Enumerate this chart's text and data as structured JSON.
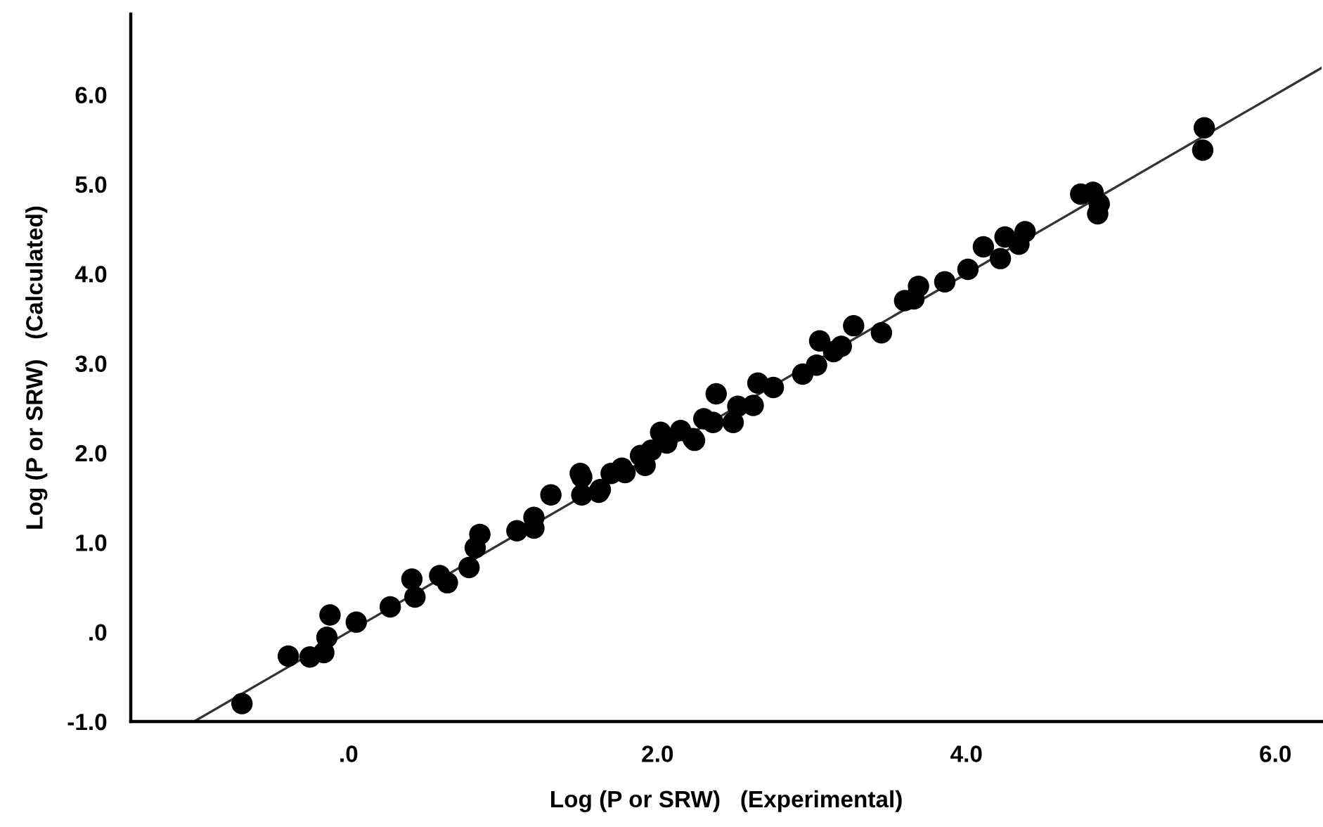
{
  "chart_data": {
    "type": "scatter",
    "xlabel": "Log (P or SRW)   (Experimental)",
    "ylabel": "Log (P or SRW)   (Calculated)",
    "xlim": [
      -1.41,
      6.3
    ],
    "ylim": [
      -1.0,
      6.9
    ],
    "xticks": [
      {
        "value": 0,
        "label": ".0"
      },
      {
        "value": 2,
        "label": "2.0"
      },
      {
        "value": 4,
        "label": "4.0"
      },
      {
        "value": 6,
        "label": "6.0"
      }
    ],
    "yticks": [
      {
        "value": -1,
        "label": "-1.0"
      },
      {
        "value": 0,
        "label": ".0"
      },
      {
        "value": 1,
        "label": "1.0"
      },
      {
        "value": 2,
        "label": "2.0"
      },
      {
        "value": 3,
        "label": "3.0"
      },
      {
        "value": 4,
        "label": "4.0"
      },
      {
        "value": 5,
        "label": "5.0"
      },
      {
        "value": 6,
        "label": "6.0"
      }
    ],
    "grid": false,
    "series": [
      {
        "color": "#000000",
        "marker": "circle",
        "x": [
          -0.69,
          -0.39,
          -0.25,
          -0.16,
          -0.14,
          -0.12,
          0.05,
          0.27,
          0.41,
          0.43,
          0.59,
          0.64,
          0.78,
          0.82,
          0.85,
          1.09,
          1.2,
          1.2,
          1.31,
          1.5,
          1.63,
          1.7,
          1.77,
          2.02,
          2.23,
          1.51,
          1.51,
          1.62,
          1.79,
          1.92,
          1.89,
          1.96,
          2.06,
          2.15,
          2.24,
          2.3,
          2.36,
          2.38,
          2.49,
          2.52,
          2.62,
          2.65,
          2.75,
          2.94,
          3.03,
          3.05,
          3.14,
          3.19,
          3.27,
          3.45,
          3.6,
          3.66,
          3.69,
          3.86,
          4.01,
          4.11,
          4.22,
          4.25,
          4.34,
          4.38,
          4.74,
          4.82,
          4.86,
          4.85,
          5.53,
          5.54
        ],
        "values": [
          -0.8,
          -0.27,
          -0.28,
          -0.23,
          -0.06,
          0.19,
          0.11,
          0.28,
          0.59,
          0.39,
          0.63,
          0.55,
          0.72,
          0.94,
          1.09,
          1.13,
          1.28,
          1.16,
          1.53,
          1.77,
          1.59,
          1.77,
          1.83,
          2.23,
          2.16,
          1.73,
          1.53,
          1.56,
          1.78,
          1.86,
          1.97,
          2.03,
          2.11,
          2.25,
          2.14,
          2.38,
          2.34,
          2.66,
          2.34,
          2.52,
          2.53,
          2.78,
          2.73,
          2.88,
          2.98,
          3.25,
          3.13,
          3.19,
          3.42,
          3.34,
          3.7,
          3.72,
          3.86,
          3.91,
          4.05,
          4.3,
          4.17,
          4.41,
          4.33,
          4.47,
          4.89,
          4.91,
          4.78,
          4.67,
          5.38,
          5.63
        ]
      },
      {
        "type": "line",
        "color": "#333333",
        "x": [
          -1.0,
          6.3
        ],
        "values": [
          -1.0,
          6.3
        ]
      }
    ]
  }
}
